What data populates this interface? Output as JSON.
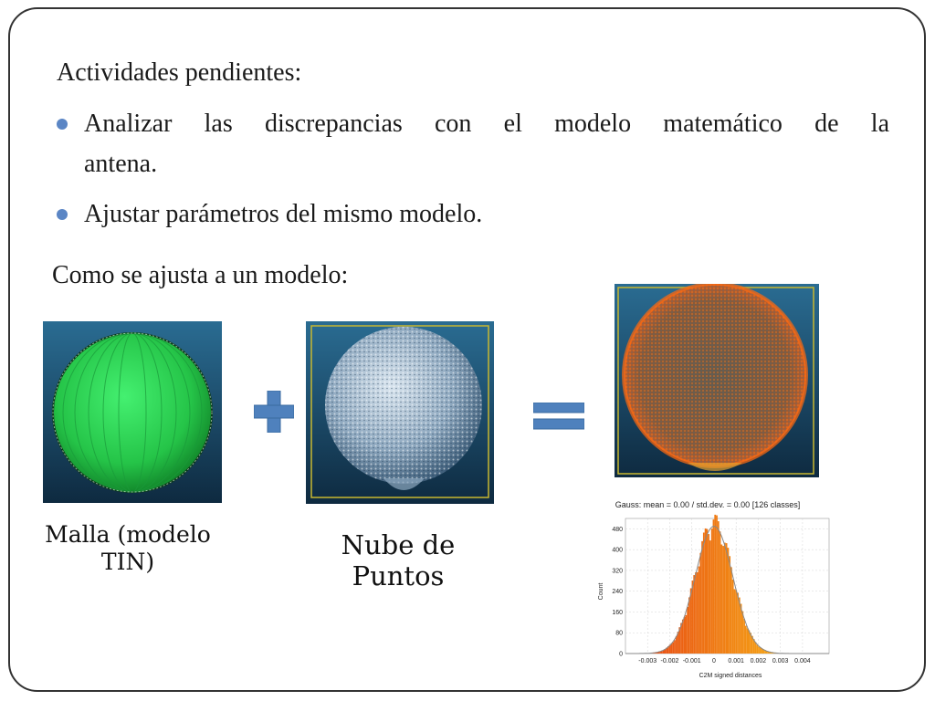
{
  "slide": {
    "title": "Actividades pendientes:",
    "bullets": [
      {
        "line1": "Analizar las discrepancias con el modelo matemático de la",
        "line2": "antena."
      },
      {
        "line1": "Ajustar parámetros del mismo modelo.",
        "line2": ""
      }
    ],
    "heading2": "Como se ajusta a un modelo:",
    "captions": {
      "mesh_line1": "Malla (modelo",
      "mesh_line2": "TIN)",
      "cloud_line1": "Nube de",
      "cloud_line2": "Puntos"
    },
    "histogram": {
      "title": "Gauss: mean = 0.00 / std.dev. = 0.00 [126 classes]",
      "xlabel": "C2M signed distances",
      "ylabel": "Count"
    }
  },
  "colors": {
    "bullet": "#5b86c5",
    "operator": "#4f81bd",
    "mesh_green": "#22cc44",
    "scene_bg": "#1c4a6b"
  },
  "chart_data": {
    "type": "bar",
    "title": "Gauss: mean = 0.00 / std.dev. = 0.00 [126 classes]",
    "xlabel": "C2M signed distances",
    "ylabel": "Count",
    "xlim": [
      -0.004,
      0.0052
    ],
    "ylim": [
      0,
      520
    ],
    "xticks": [
      "-0.003",
      "-0.002",
      "-0.001",
      "0",
      "0.001",
      "0.002",
      "0.003",
      "0.004"
    ],
    "yticks": [
      "0",
      "80",
      "160",
      "240",
      "320",
      "400",
      "480"
    ],
    "mean": 0.0,
    "peak": 490,
    "std": 0.00085
  }
}
